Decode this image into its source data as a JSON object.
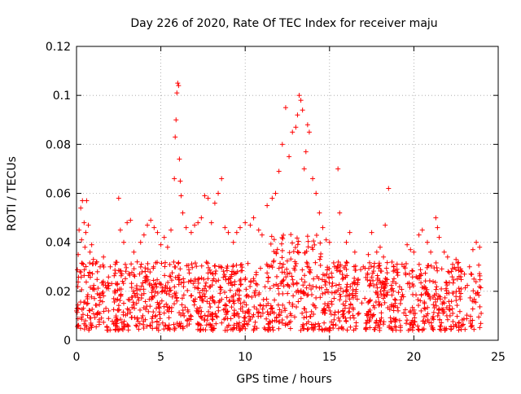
{
  "chart_data": {
    "type": "scatter",
    "title": "Day 226 of 2020, Rate Of TEC Index for receiver maju",
    "xlabel": "GPS time / hours",
    "ylabel": "ROTI / TECUs",
    "xlim": [
      0,
      25
    ],
    "ylim": [
      0,
      0.12
    ],
    "x_ticks": [
      "0",
      "5",
      "10",
      "15",
      "20",
      "25"
    ],
    "y_ticks": [
      "0",
      "0.02",
      "0.04",
      "0.06",
      "0.08",
      "0.1",
      "0.12"
    ],
    "x_tick_values": [
      0,
      5,
      10,
      15,
      20,
      25
    ],
    "y_tick_values": [
      0,
      0.02,
      0.04,
      0.06,
      0.08,
      0.1,
      0.12
    ],
    "grid": true,
    "marker": "+",
    "color": "#ff0000",
    "series": [
      {
        "values": [
          [
            0.0,
            0.012
          ],
          [
            0.1,
            0.035
          ],
          [
            0.15,
            0.045
          ],
          [
            0.2,
            0.028
          ],
          [
            0.25,
            0.054
          ],
          [
            0.3,
            0.041
          ],
          [
            0.35,
            0.057
          ],
          [
            0.4,
            0.031
          ],
          [
            0.45,
            0.048
          ],
          [
            0.5,
            0.038
          ],
          [
            0.55,
            0.044
          ],
          [
            0.6,
            0.057
          ],
          [
            0.7,
            0.047
          ],
          [
            0.8,
            0.036
          ],
          [
            0.9,
            0.039
          ],
          [
            1.0,
            0.033
          ],
          [
            1.2,
            0.032
          ],
          [
            1.4,
            0.03
          ],
          [
            1.6,
            0.034
          ],
          [
            2.0,
            0.03
          ],
          [
            2.3,
            0.031
          ],
          [
            2.5,
            0.058
          ],
          [
            2.6,
            0.045
          ],
          [
            2.8,
            0.04
          ],
          [
            3.0,
            0.048
          ],
          [
            3.2,
            0.049
          ],
          [
            3.4,
            0.036
          ],
          [
            3.6,
            0.032
          ],
          [
            3.8,
            0.04
          ],
          [
            4.0,
            0.043
          ],
          [
            4.2,
            0.047
          ],
          [
            4.4,
            0.049
          ],
          [
            4.6,
            0.046
          ],
          [
            4.8,
            0.044
          ],
          [
            5.0,
            0.039
          ],
          [
            5.2,
            0.042
          ],
          [
            5.4,
            0.038
          ],
          [
            5.6,
            0.045
          ],
          [
            5.8,
            0.066
          ],
          [
            5.85,
            0.083
          ],
          [
            5.9,
            0.09
          ],
          [
            5.95,
            0.101
          ],
          [
            6.0,
            0.105
          ],
          [
            6.05,
            0.104
          ],
          [
            6.1,
            0.074
          ],
          [
            6.15,
            0.065
          ],
          [
            6.2,
            0.059
          ],
          [
            6.3,
            0.052
          ],
          [
            6.5,
            0.046
          ],
          [
            6.8,
            0.044
          ],
          [
            7.0,
            0.047
          ],
          [
            7.2,
            0.048
          ],
          [
            7.4,
            0.05
          ],
          [
            7.6,
            0.059
          ],
          [
            7.8,
            0.058
          ],
          [
            8.0,
            0.048
          ],
          [
            8.2,
            0.056
          ],
          [
            8.4,
            0.06
          ],
          [
            8.6,
            0.066
          ],
          [
            8.8,
            0.046
          ],
          [
            9.0,
            0.044
          ],
          [
            9.3,
            0.04
          ],
          [
            9.5,
            0.044
          ],
          [
            9.7,
            0.046
          ],
          [
            10.0,
            0.048
          ],
          [
            10.3,
            0.047
          ],
          [
            10.5,
            0.05
          ],
          [
            10.8,
            0.045
          ],
          [
            11.0,
            0.043
          ],
          [
            11.3,
            0.055
          ],
          [
            11.6,
            0.058
          ],
          [
            11.8,
            0.06
          ],
          [
            12.0,
            0.069
          ],
          [
            12.2,
            0.08
          ],
          [
            12.4,
            0.095
          ],
          [
            12.6,
            0.075
          ],
          [
            12.8,
            0.085
          ],
          [
            13.0,
            0.087
          ],
          [
            13.1,
            0.092
          ],
          [
            13.2,
            0.1
          ],
          [
            13.3,
            0.098
          ],
          [
            13.4,
            0.094
          ],
          [
            13.5,
            0.07
          ],
          [
            13.6,
            0.077
          ],
          [
            13.7,
            0.088
          ],
          [
            13.8,
            0.085
          ],
          [
            14.0,
            0.066
          ],
          [
            14.2,
            0.06
          ],
          [
            14.4,
            0.052
          ],
          [
            14.6,
            0.046
          ],
          [
            14.8,
            0.041
          ],
          [
            15.0,
            0.04
          ],
          [
            15.3,
            0.03
          ],
          [
            15.5,
            0.07
          ],
          [
            15.6,
            0.052
          ],
          [
            16.0,
            0.04
          ],
          [
            16.2,
            0.044
          ],
          [
            16.5,
            0.036
          ],
          [
            17.0,
            0.03
          ],
          [
            17.3,
            0.035
          ],
          [
            17.5,
            0.044
          ],
          [
            17.8,
            0.036
          ],
          [
            18.0,
            0.038
          ],
          [
            18.2,
            0.034
          ],
          [
            18.3,
            0.047
          ],
          [
            18.5,
            0.062
          ],
          [
            18.8,
            0.03
          ],
          [
            19.0,
            0.029
          ],
          [
            19.3,
            0.031
          ],
          [
            19.6,
            0.039
          ],
          [
            19.8,
            0.037
          ],
          [
            20.0,
            0.036
          ],
          [
            20.3,
            0.043
          ],
          [
            20.5,
            0.045
          ],
          [
            20.8,
            0.04
          ],
          [
            21.0,
            0.036
          ],
          [
            21.3,
            0.05
          ],
          [
            21.4,
            0.046
          ],
          [
            21.5,
            0.042
          ],
          [
            21.8,
            0.036
          ],
          [
            22.0,
            0.034
          ],
          [
            22.3,
            0.031
          ],
          [
            22.5,
            0.033
          ],
          [
            22.8,
            0.028
          ],
          [
            23.0,
            0.027
          ],
          [
            23.3,
            0.03
          ],
          [
            23.5,
            0.037
          ],
          [
            23.7,
            0.04
          ],
          [
            23.9,
            0.038
          ]
        ]
      }
    ],
    "band": {
      "x_range": [
        0,
        24
      ],
      "typical_range": [
        0.004,
        0.032
      ]
    }
  }
}
